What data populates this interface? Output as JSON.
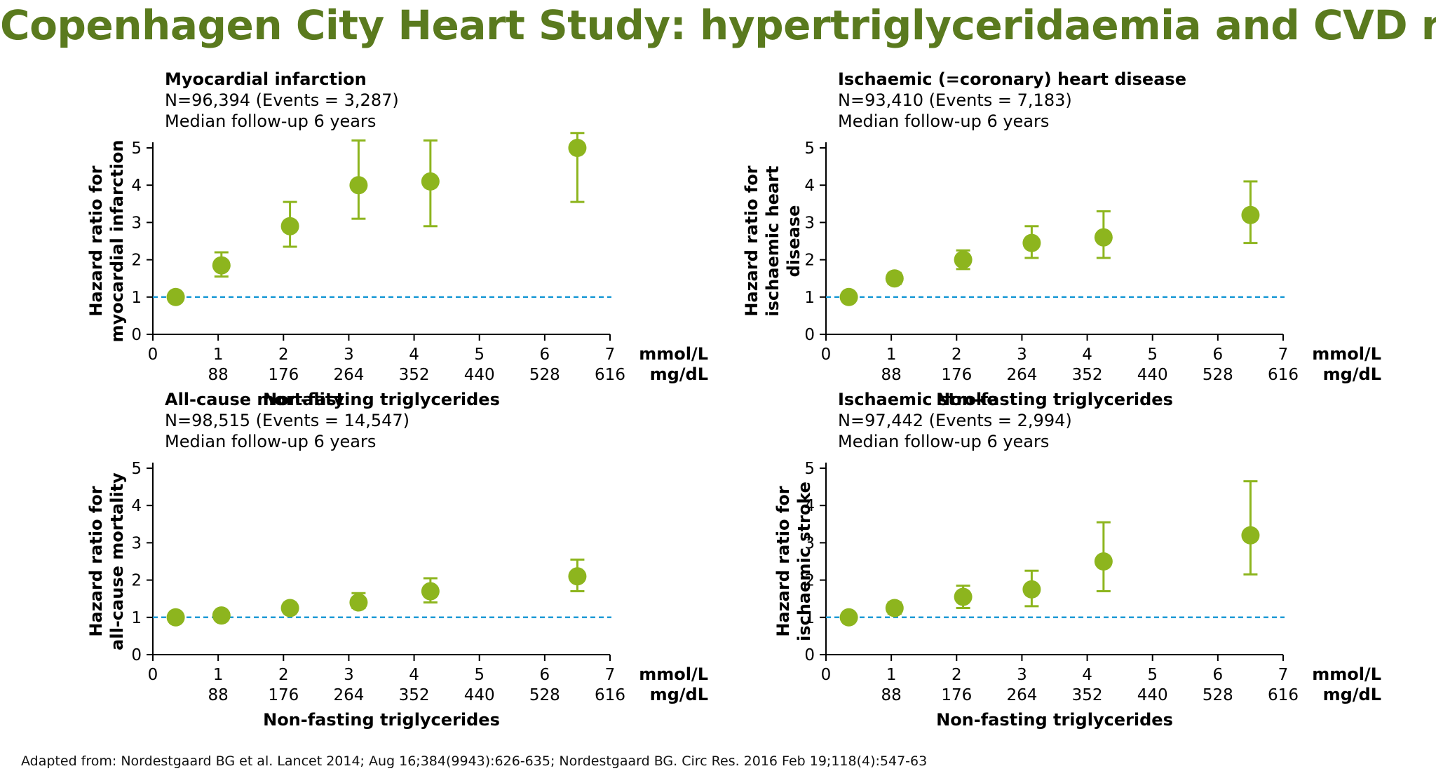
{
  "page_title": "Copenhagen City Heart Study: hypertriglyceridaemia and CVD risk",
  "footnote": "Adapted from: Nordestgaard BG et al. Lancet 2014; Aug 16;384(9943):626-635; Nordestgaard BG. Circ Res. 2016 Feb 19;118(4):547-63",
  "colors": {
    "title": "#5a7a1e",
    "marker": "#8db51e",
    "reference_line": "#1c9ad6"
  },
  "chart_data": [
    {
      "type": "scatter",
      "title": "Myocardial infarction",
      "subtitle": [
        "N=96,394 (Events = 3,287)",
        "Median follow-up 6 years"
      ],
      "ylabel": [
        "Hazard ratio for",
        "myocardial infarction"
      ],
      "xlabel": "Non-fasting triglycerides",
      "x_unit_primary": "mmol/L",
      "x_unit_secondary": "mg/dL",
      "x_ticks": [
        "0",
        "1",
        "2",
        "3",
        "4",
        "5",
        "6",
        "7"
      ],
      "x_ticks_secondary": [
        "88",
        "176",
        "264",
        "352",
        "440",
        "528",
        "616"
      ],
      "y_ticks": [
        "0",
        "1",
        "2",
        "3",
        "4",
        "5"
      ],
      "xlim": [
        0,
        7
      ],
      "ylim": [
        0,
        5
      ],
      "reference_y": 1,
      "points": [
        {
          "x": 0.35,
          "y": 1.0
        },
        {
          "x": 1.05,
          "y": 1.85,
          "lo": 1.55,
          "hi": 2.2
        },
        {
          "x": 2.1,
          "y": 2.9,
          "lo": 2.35,
          "hi": 3.55
        },
        {
          "x": 3.15,
          "y": 4.0,
          "lo": 3.1,
          "hi": 5.2
        },
        {
          "x": 4.25,
          "y": 4.1,
          "lo": 2.9,
          "hi": 5.2
        },
        {
          "x": 6.5,
          "y": 5.0,
          "lo": 3.55,
          "hi": 5.4
        }
      ]
    },
    {
      "type": "scatter",
      "title": "Ischaemic (=coronary) heart disease",
      "subtitle": [
        "N=93,410 (Events = 7,183)",
        "Median follow-up 6 years"
      ],
      "ylabel": [
        "Hazard ratio for",
        "ischaemic heart",
        "disease"
      ],
      "xlabel": "Non-fasting triglycerides",
      "x_unit_primary": "mmol/L",
      "x_unit_secondary": "mg/dL",
      "x_ticks": [
        "0",
        "1",
        "2",
        "3",
        "4",
        "5",
        "6",
        "7"
      ],
      "x_ticks_secondary": [
        "88",
        "176",
        "264",
        "352",
        "440",
        "528",
        "616"
      ],
      "y_ticks": [
        "0",
        "1",
        "2",
        "3",
        "4",
        "5"
      ],
      "xlim": [
        0,
        7
      ],
      "ylim": [
        0,
        5
      ],
      "reference_y": 1,
      "points": [
        {
          "x": 0.35,
          "y": 1.0
        },
        {
          "x": 1.05,
          "y": 1.5,
          "lo": 1.35,
          "hi": 1.65
        },
        {
          "x": 2.1,
          "y": 2.0,
          "lo": 1.75,
          "hi": 2.25
        },
        {
          "x": 3.15,
          "y": 2.45,
          "lo": 2.05,
          "hi": 2.9
        },
        {
          "x": 4.25,
          "y": 2.6,
          "lo": 2.05,
          "hi": 3.3
        },
        {
          "x": 6.5,
          "y": 3.2,
          "lo": 2.45,
          "hi": 4.1
        }
      ]
    },
    {
      "type": "scatter",
      "title": "All-cause mortality",
      "subtitle": [
        "N=98,515 (Events = 14,547)",
        "Median follow-up 6 years"
      ],
      "ylabel": [
        "Hazard ratio for",
        "all-cause mortality"
      ],
      "xlabel": "Non-fasting triglycerides",
      "x_unit_primary": "mmol/L",
      "x_unit_secondary": "mg/dL",
      "x_ticks": [
        "0",
        "1",
        "2",
        "3",
        "4",
        "5",
        "6",
        "7"
      ],
      "x_ticks_secondary": [
        "88",
        "176",
        "264",
        "352",
        "440",
        "528",
        "616"
      ],
      "y_ticks": [
        "0",
        "1",
        "2",
        "3",
        "4",
        "5"
      ],
      "xlim": [
        0,
        7
      ],
      "ylim": [
        0,
        5
      ],
      "reference_y": 1,
      "points": [
        {
          "x": 0.35,
          "y": 1.0
        },
        {
          "x": 1.05,
          "y": 1.05,
          "lo": 0.97,
          "hi": 1.13
        },
        {
          "x": 2.1,
          "y": 1.25,
          "lo": 1.15,
          "hi": 1.35
        },
        {
          "x": 3.15,
          "y": 1.4,
          "lo": 1.25,
          "hi": 1.65
        },
        {
          "x": 4.25,
          "y": 1.7,
          "lo": 1.4,
          "hi": 2.05
        },
        {
          "x": 6.5,
          "y": 2.1,
          "lo": 1.7,
          "hi": 2.55
        }
      ]
    },
    {
      "type": "scatter",
      "title": "Ischaemic stroke",
      "subtitle": [
        "N=97,442 (Events = 2,994)",
        "Median follow-up 6 years"
      ],
      "ylabel": [
        "Hazard ratio for",
        "ischaemic stroke"
      ],
      "xlabel": "Non-fasting triglycerides",
      "x_unit_primary": "mmol/L",
      "x_unit_secondary": "mg/dL",
      "x_ticks": [
        "0",
        "1",
        "2",
        "3",
        "4",
        "5",
        "6",
        "7"
      ],
      "x_ticks_secondary": [
        "88",
        "176",
        "264",
        "352",
        "440",
        "528",
        "616"
      ],
      "y_ticks": [
        "0",
        "1",
        "2",
        "3",
        "4",
        "5"
      ],
      "xlim": [
        0,
        7
      ],
      "ylim": [
        0,
        5
      ],
      "reference_y": 1,
      "points": [
        {
          "x": 0.35,
          "y": 1.0
        },
        {
          "x": 1.05,
          "y": 1.25,
          "lo": 1.1,
          "hi": 1.4
        },
        {
          "x": 2.1,
          "y": 1.55,
          "lo": 1.25,
          "hi": 1.85
        },
        {
          "x": 3.15,
          "y": 1.75,
          "lo": 1.3,
          "hi": 2.25
        },
        {
          "x": 4.25,
          "y": 2.5,
          "lo": 1.7,
          "hi": 3.55
        },
        {
          "x": 6.5,
          "y": 3.2,
          "lo": 2.15,
          "hi": 4.65
        }
      ]
    }
  ]
}
